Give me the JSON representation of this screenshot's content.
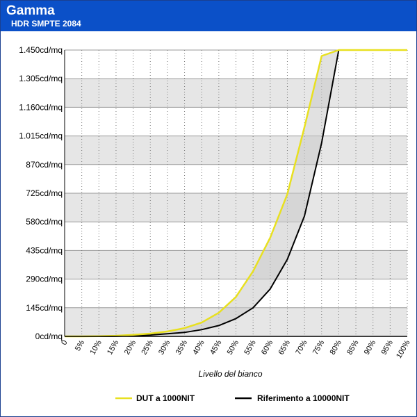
{
  "header": {
    "title": "Gamma",
    "subtitle": "HDR SMPTE 2084"
  },
  "chart_data": {
    "type": "line",
    "title": "Gamma",
    "subtitle": "HDR SMPTE 2084",
    "xlabel": "Livello del bianco",
    "ylabel": "",
    "x": [
      0,
      5,
      10,
      15,
      20,
      25,
      30,
      35,
      40,
      45,
      50,
      55,
      60,
      65,
      70,
      75,
      80,
      85,
      90,
      95,
      100
    ],
    "x_tick_labels": [
      "0",
      "5%",
      "10%",
      "15%",
      "20%",
      "25%",
      "30%",
      "35%",
      "40%",
      "45%",
      "50%",
      "55%",
      "60%",
      "65%",
      "70%",
      "75%",
      "80%",
      "85%",
      "90%",
      "95%",
      "100%"
    ],
    "y_ticks": [
      0,
      145,
      290,
      435,
      580,
      725,
      870,
      1015,
      1160,
      1305,
      1450
    ],
    "y_tick_labels": [
      "0cd/mq",
      "145cd/mq",
      "290cd/mq",
      "435cd/mq",
      "580cd/mq",
      "725cd/mq",
      "870cd/mq",
      "1.015cd/mq",
      "1.160cd/mq",
      "1.305cd/mq",
      "1.450cd/mq"
    ],
    "xlim": [
      0,
      100
    ],
    "ylim": [
      0,
      1450
    ],
    "grid": true,
    "legend_position": "bottom",
    "series": [
      {
        "name": "DUT a 1000NIT",
        "color": "#e8e020",
        "values": [
          0,
          0,
          1,
          3,
          8,
          14,
          25,
          42,
          70,
          120,
          200,
          330,
          500,
          720,
          1060,
          1420,
          1450,
          1450,
          1450,
          1450,
          1450
        ]
      },
      {
        "name": "Riferimento a 10000NIT",
        "color": "#000000",
        "values": [
          0,
          0,
          0,
          1,
          3,
          7,
          13,
          20,
          34,
          55,
          90,
          145,
          240,
          390,
          610,
          980,
          1450,
          1450,
          1450,
          1450,
          1450
        ]
      }
    ]
  }
}
